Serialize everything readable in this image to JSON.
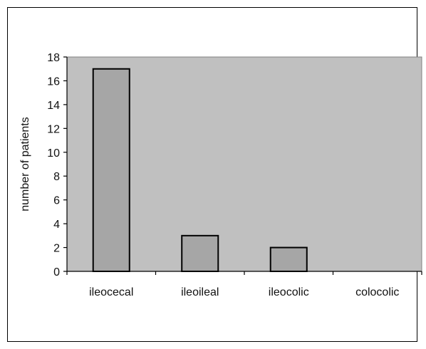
{
  "chart_data": {
    "type": "bar",
    "categories": [
      "ileocecal",
      "ileoileal",
      "ileocolic",
      "colocolic"
    ],
    "values": [
      17,
      3,
      2,
      0
    ],
    "title": "",
    "xlabel": "",
    "ylabel": "number of patients",
    "ylim": [
      0,
      18
    ],
    "yticks": [
      0,
      2,
      4,
      6,
      8,
      10,
      12,
      14,
      16,
      18
    ],
    "grid": false,
    "legend": "none",
    "colors": {
      "plot_background": "#c0c0c0",
      "bar_fill": "#a6a6a6",
      "bar_stroke": "#000000",
      "frame": "#000000"
    }
  }
}
